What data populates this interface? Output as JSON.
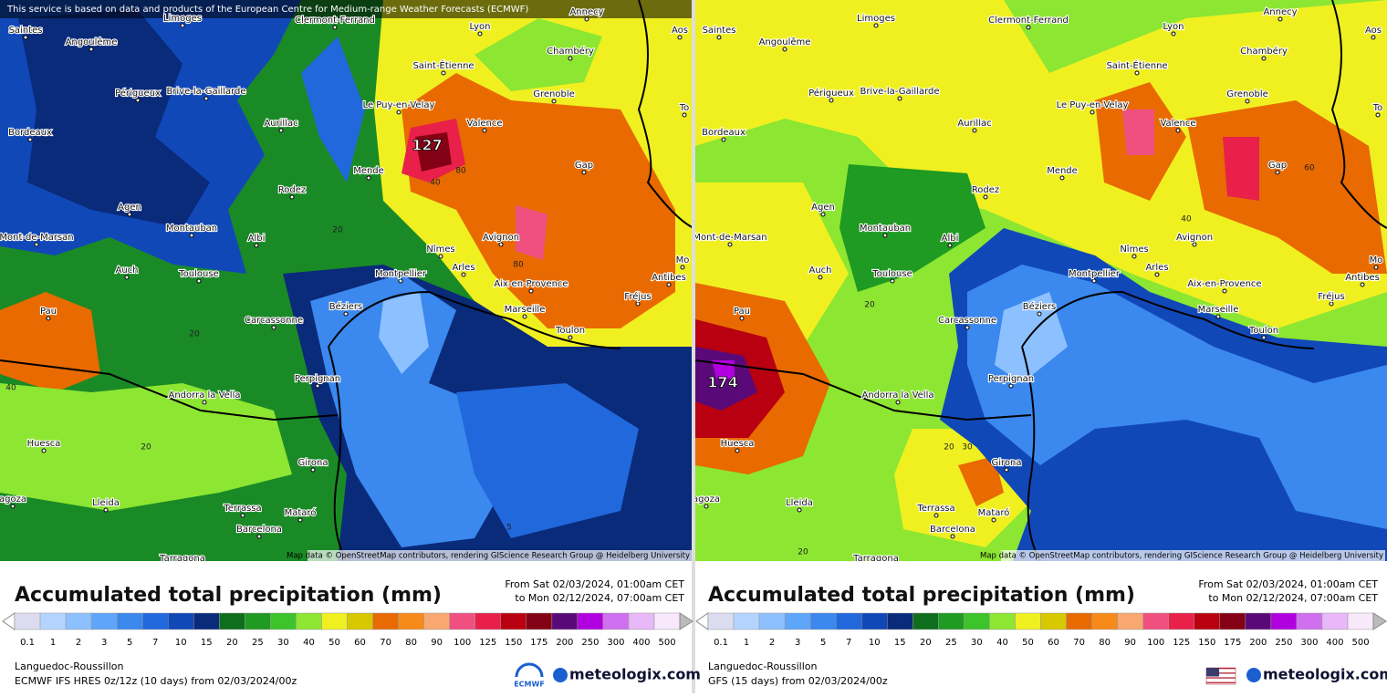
{
  "attribution": "This service is based on data and products of the European Centre for Medium-range Weather Forecasts (ECMWF)",
  "cities": [
    "Saintes",
    "Angoulême",
    "Limoges",
    "Clermont-Ferrand",
    "Lyon",
    "Annecy",
    "Aos",
    "Chambéry",
    "Saint-Étienne",
    "Périgueux",
    "Brive-la-Gaillarde",
    "Aurillac",
    "Le Puy-en-Velay",
    "Grenoble",
    "Valence",
    "Bordeaux",
    "Mende",
    "Gap",
    "Rodez",
    "Agen",
    "Montauban",
    "Albi",
    "Mont-de-Marsan",
    "Nîmes",
    "Avignon",
    "Auch",
    "Toulouse",
    "Arles",
    "Montpellier",
    "Aix-en-Provence",
    "Antibes",
    "Fréjus",
    "Béziers",
    "Marseille",
    "Toulon",
    "Pau",
    "Carcassonne",
    "Perpignan",
    "Andorra la Vella",
    "Huesca",
    "Girona",
    "Lleida",
    "Terrassa",
    "Mataró",
    "Barcelona",
    "Tarragona",
    "agoza",
    "To",
    "Mo"
  ],
  "map_credit": "Map data © OpenStreetMap contributors, rendering GIScience Research Group @ Heidelberg University",
  "legend_title": "Accumulated total precipitation (mm)",
  "period_from": "From Sat 02/03/2024, 01:00am CET",
  "period_to": "to Mon 02/12/2024, 07:00am CET",
  "region": "Languedoc-Roussillon",
  "site": "meteologix.com",
  "scale": {
    "values": [
      0.1,
      1,
      2,
      3,
      5,
      7,
      10,
      15,
      20,
      25,
      30,
      40,
      50,
      60,
      70,
      80,
      90,
      100,
      125,
      150,
      175,
      200,
      250,
      300,
      400,
      500
    ],
    "colors": [
      "#dcdcf0",
      "#b4d4ff",
      "#8cc0ff",
      "#5ea6fa",
      "#3b88ee",
      "#2068dc",
      "#1148b8",
      "#0a2a7a",
      "#0f6e1e",
      "#1f9a22",
      "#3cc42a",
      "#8ce632",
      "#f0f020",
      "#d8c800",
      "#e86a00",
      "#f88a1a",
      "#f8a870",
      "#f05080",
      "#e8204a",
      "#b80010",
      "#840014",
      "#5a0a78",
      "#b000e0",
      "#d070f0",
      "#e8b8f8",
      "#f8e8fc"
    ]
  },
  "panels": [
    {
      "model": "ECMWF IFS HRES 0z/12z (10 days)  from  02/03/2024/00z",
      "logo": "ECMWF",
      "max_value": 127,
      "contour_labels": [
        80,
        40,
        80,
        20,
        20,
        40,
        5,
        20
      ]
    },
    {
      "model": "GFS (15 days)  from  02/03/2024/00z",
      "max_value": 174,
      "contour_labels": [
        40,
        60,
        20,
        20,
        20,
        30
      ]
    }
  ]
}
